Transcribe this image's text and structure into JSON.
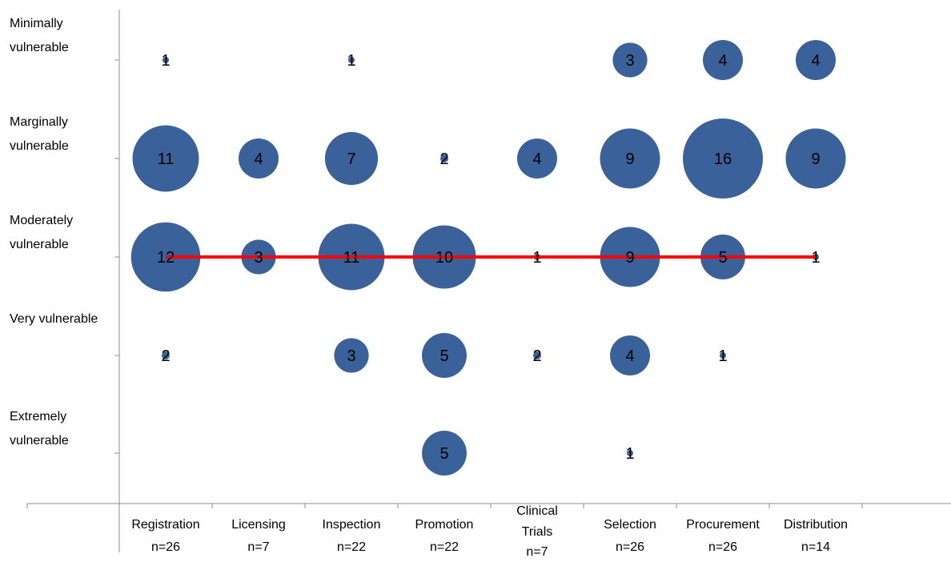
{
  "chart_data": {
    "type": "bubble",
    "title": "",
    "y_categories": [
      "Minimally vulnerable",
      "Marginally vulnerable",
      "Moderately vulnerable",
      "Very vulnerable",
      "Extremely vulnerable"
    ],
    "x_categories": [
      {
        "name": "Registration",
        "n": "n=26"
      },
      {
        "name": "Licensing",
        "n": "n=7"
      },
      {
        "name": "Inspection",
        "n": "n=22"
      },
      {
        "name": "Promotion",
        "n": "n=22"
      },
      {
        "name": "Clinical Trials",
        "n": "n=7"
      },
      {
        "name": "Selection",
        "n": "n=26"
      },
      {
        "name": "Procurement",
        "n": "n=26"
      },
      {
        "name": "Distribution",
        "n": "n=14"
      }
    ],
    "bubbles": [
      {
        "x": "Registration",
        "y": "Minimally vulnerable",
        "value": 1
      },
      {
        "x": "Inspection",
        "y": "Minimally vulnerable",
        "value": 1
      },
      {
        "x": "Selection",
        "y": "Minimally vulnerable",
        "value": 3
      },
      {
        "x": "Procurement",
        "y": "Minimally vulnerable",
        "value": 4
      },
      {
        "x": "Distribution",
        "y": "Minimally vulnerable",
        "value": 4
      },
      {
        "x": "Registration",
        "y": "Marginally vulnerable",
        "value": 11
      },
      {
        "x": "Licensing",
        "y": "Marginally vulnerable",
        "value": 4
      },
      {
        "x": "Inspection",
        "y": "Marginally vulnerable",
        "value": 7
      },
      {
        "x": "Promotion",
        "y": "Marginally vulnerable",
        "value": 2
      },
      {
        "x": "Clinical Trials",
        "y": "Marginally vulnerable",
        "value": 4
      },
      {
        "x": "Selection",
        "y": "Marginally vulnerable",
        "value": 9
      },
      {
        "x": "Procurement",
        "y": "Marginally vulnerable",
        "value": 16
      },
      {
        "x": "Distribution",
        "y": "Marginally vulnerable",
        "value": 9
      },
      {
        "x": "Registration",
        "y": "Moderately vulnerable",
        "value": 12
      },
      {
        "x": "Licensing",
        "y": "Moderately vulnerable",
        "value": 3
      },
      {
        "x": "Inspection",
        "y": "Moderately vulnerable",
        "value": 11
      },
      {
        "x": "Promotion",
        "y": "Moderately vulnerable",
        "value": 10
      },
      {
        "x": "Clinical Trials",
        "y": "Moderately vulnerable",
        "value": 1
      },
      {
        "x": "Selection",
        "y": "Moderately vulnerable",
        "value": 9
      },
      {
        "x": "Procurement",
        "y": "Moderately vulnerable",
        "value": 5
      },
      {
        "x": "Distribution",
        "y": "Moderately vulnerable",
        "value": 1
      },
      {
        "x": "Registration",
        "y": "Very vulnerable",
        "value": 2
      },
      {
        "x": "Inspection",
        "y": "Very vulnerable",
        "value": 3
      },
      {
        "x": "Promotion",
        "y": "Very vulnerable",
        "value": 5
      },
      {
        "x": "Clinical Trials",
        "y": "Very vulnerable",
        "value": 2
      },
      {
        "x": "Selection",
        "y": "Very vulnerable",
        "value": 4
      },
      {
        "x": "Procurement",
        "y": "Very vulnerable",
        "value": 1
      },
      {
        "x": "Promotion",
        "y": "Extremely vulnerable",
        "value": 5
      },
      {
        "x": "Selection",
        "y": "Extremely vulnerable",
        "value": 1
      }
    ],
    "reference_line": {
      "y": "Moderately vulnerable",
      "from": "Registration",
      "to": "Distribution",
      "color": "#ff0000"
    },
    "bubble_color": "#3a6199",
    "grid": false,
    "legend": "none"
  }
}
